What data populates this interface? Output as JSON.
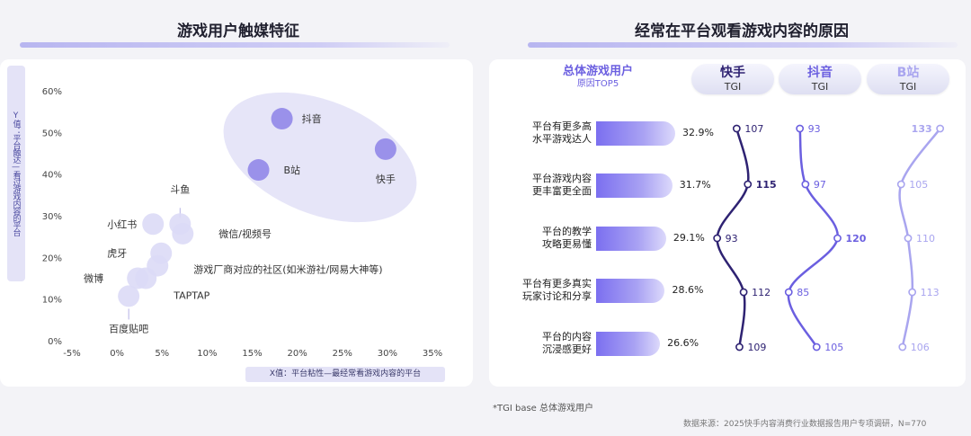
{
  "left": {
    "title": "游戏用户触媒特征",
    "ylabel": "Y值：平台触达—看过游戏内容的平台",
    "xlabel": "X值：平台粘性—最经常看游戏内容的平台"
  },
  "right": {
    "title": "经常在平台观看游戏内容的原因",
    "header_main": "总体游戏用户",
    "header_sub": "原因TOP5",
    "platforms": [
      {
        "name": "快手",
        "sub": "TGI",
        "color": "#2e2272"
      },
      {
        "name": "抖音",
        "sub": "TGI",
        "color": "#6b5fe0"
      },
      {
        "name": "B站",
        "sub": "TGI",
        "color": "#a9a5ef"
      }
    ]
  },
  "footnote": "*TGI base 总体游戏用户",
  "source": "数据来源：2025快手内容消费行业数据报告用户专项调研，N=770",
  "chart_data": [
    {
      "type": "scatter",
      "xlim": [
        -0.05,
        0.35
      ],
      "ylim": [
        0,
        0.6
      ],
      "x_ticks": [
        "-5%",
        "0%",
        "5%",
        "10%",
        "15%",
        "20%",
        "25%",
        "30%",
        "35%"
      ],
      "y_ticks": [
        "0%",
        "10%",
        "20%",
        "30%",
        "40%",
        "50%",
        "60%"
      ],
      "points": [
        {
          "label": "抖音",
          "x": 0.183,
          "y": 0.533,
          "highlight": true
        },
        {
          "label": "快手",
          "x": 0.298,
          "y": 0.46,
          "highlight": true
        },
        {
          "label": "B站",
          "x": 0.157,
          "y": 0.41,
          "highlight": true
        },
        {
          "label": "斗鱼",
          "x": 0.07,
          "y": 0.28,
          "highlight": false
        },
        {
          "label": "小红书",
          "x": 0.04,
          "y": 0.28,
          "highlight": false
        },
        {
          "label": "微信/视频号",
          "x": 0.073,
          "y": 0.257,
          "highlight": false
        },
        {
          "label": "虎牙",
          "x": 0.049,
          "y": 0.21,
          "highlight": false
        },
        {
          "label": "游戏厂商对应的社区(如米游社/网易大神等)",
          "x": 0.045,
          "y": 0.18,
          "highlight": false
        },
        {
          "label": "微博",
          "x": 0.023,
          "y": 0.15,
          "highlight": false
        },
        {
          "label": "TAPTAP",
          "x": 0.032,
          "y": 0.15,
          "highlight": false
        },
        {
          "label": "百度贴吧",
          "x": 0.013,
          "y": 0.107,
          "highlight": false
        }
      ]
    },
    {
      "type": "bar",
      "categories": [
        "平台有更多高\n水平游戏达人",
        "平台游戏内容\n更丰富更全面",
        "平台的教学\n攻略更易懂",
        "平台有更多真实\n玩家讨论和分享",
        "平台的内容\n沉浸感更好"
      ],
      "values": [
        32.9,
        31.7,
        29.1,
        28.6,
        26.6
      ],
      "value_labels": [
        "32.9%",
        "31.7%",
        "29.1%",
        "28.6%",
        "26.6%"
      ]
    },
    {
      "type": "line",
      "categories": [
        "平台有更多高\n水平游戏达人",
        "平台游戏内容\n更丰富更全面",
        "平台的教学\n攻略更易懂",
        "平台有更多真实\n玩家讨论和分享",
        "平台的内容\n沉浸感更好"
      ],
      "series": [
        {
          "name": "快手",
          "values": [
            107,
            115,
            93,
            112,
            109
          ]
        },
        {
          "name": "抖音",
          "values": [
            93,
            97,
            120,
            85,
            105
          ]
        },
        {
          "name": "B站",
          "values": [
            133,
            105,
            110,
            113,
            106
          ]
        }
      ]
    }
  ]
}
